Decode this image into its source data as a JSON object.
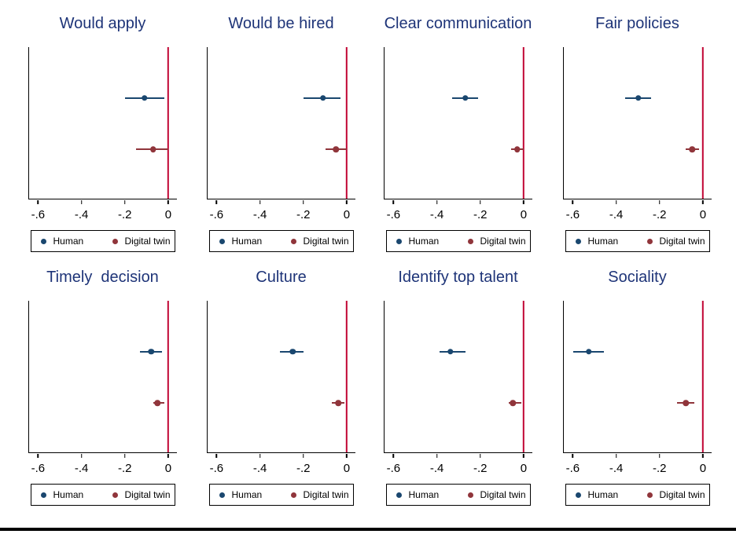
{
  "chart_data": {
    "type": "scatter",
    "subtype": "coefficient plot: point estimates with horizontal confidence intervals, 8 small-multiple panels, red reference line at 0",
    "x_range": [
      -0.645,
      0.04
    ],
    "x_ticks": [
      -0.6,
      -0.4,
      -0.2,
      0
    ],
    "x_tick_labels": [
      "-.6",
      "-.4",
      "-.2",
      "0"
    ],
    "zero_line_x": 0,
    "grid": "off",
    "legend_position": "boxed, below each panel",
    "series_names": [
      "Human",
      "Digital twin"
    ],
    "panels": [
      {
        "title": "Would apply",
        "human": {
          "estimate": -0.11,
          "ci_low": -0.2,
          "ci_high": -0.02
        },
        "digital_twin": {
          "estimate": -0.07,
          "ci_low": -0.15,
          "ci_high": 0.0
        }
      },
      {
        "title": "Would be hired",
        "human": {
          "estimate": -0.11,
          "ci_low": -0.2,
          "ci_high": -0.03
        },
        "digital_twin": {
          "estimate": -0.05,
          "ci_low": -0.1,
          "ci_high": 0.0
        }
      },
      {
        "title": "Clear communication",
        "human": {
          "estimate": -0.27,
          "ci_low": -0.33,
          "ci_high": -0.21
        },
        "digital_twin": {
          "estimate": -0.03,
          "ci_low": -0.06,
          "ci_high": 0.0
        }
      },
      {
        "title": "Fair policies",
        "human": {
          "estimate": -0.3,
          "ci_low": -0.36,
          "ci_high": -0.24
        },
        "digital_twin": {
          "estimate": -0.05,
          "ci_low": -0.08,
          "ci_high": -0.02
        }
      },
      {
        "title": "Timely  decision",
        "human": {
          "estimate": -0.08,
          "ci_low": -0.13,
          "ci_high": -0.03
        },
        "digital_twin": {
          "estimate": -0.05,
          "ci_low": -0.07,
          "ci_high": -0.02
        }
      },
      {
        "title": "Culture",
        "human": {
          "estimate": -0.25,
          "ci_low": -0.31,
          "ci_high": -0.2
        },
        "digital_twin": {
          "estimate": -0.04,
          "ci_low": -0.07,
          "ci_high": -0.01
        }
      },
      {
        "title": "Identify top talent",
        "human": {
          "estimate": -0.34,
          "ci_low": -0.39,
          "ci_high": -0.27
        },
        "digital_twin": {
          "estimate": -0.05,
          "ci_low": -0.07,
          "ci_high": -0.01
        }
      },
      {
        "title": "Sociality",
        "human": {
          "estimate": -0.53,
          "ci_low": -0.6,
          "ci_high": -0.46
        },
        "digital_twin": {
          "estimate": -0.08,
          "ci_low": -0.12,
          "ci_high": -0.04
        }
      }
    ]
  },
  "legend": {
    "human_label": "Human",
    "twin_label": "Digital twin"
  },
  "colors": {
    "human": "#1a476f",
    "digital_twin": "#90353b",
    "zero_line": "#c10534",
    "panel_title": "#1e3478",
    "axis": "#000000",
    "background": "#ffffff"
  }
}
